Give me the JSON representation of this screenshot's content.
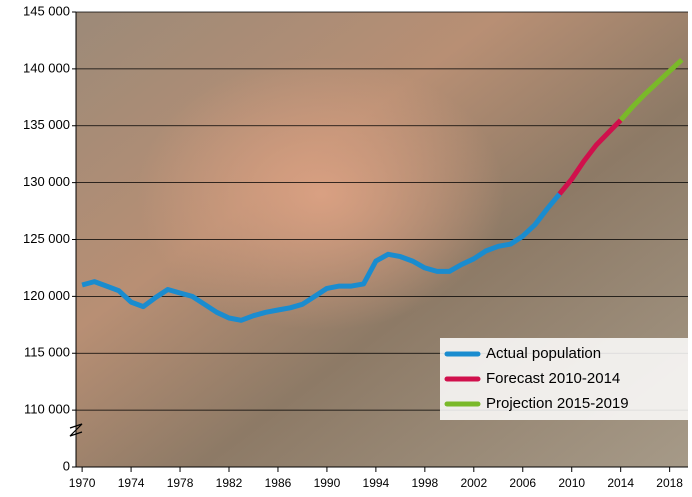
{
  "chart_data": {
    "type": "line",
    "xlim": [
      1969.5,
      2019.5
    ],
    "xticks": [
      1970,
      1974,
      1978,
      1982,
      1986,
      1990,
      1994,
      1998,
      2002,
      2006,
      2010,
      2014,
      2018
    ],
    "ylim": [
      105000,
      145000
    ],
    "axis_break": true,
    "yticks": [
      {
        "value": 0,
        "label": "0"
      },
      {
        "value": 110000,
        "label": "110 000"
      },
      {
        "value": 115000,
        "label": "115 000"
      },
      {
        "value": 120000,
        "label": "120 000"
      },
      {
        "value": 125000,
        "label": "125 000"
      },
      {
        "value": 130000,
        "label": "130 000"
      },
      {
        "value": 135000,
        "label": "135 000"
      },
      {
        "value": 140000,
        "label": "140 000"
      },
      {
        "value": 145000,
        "label": "145 000"
      }
    ],
    "grid": true,
    "legend": "lower right",
    "series": [
      {
        "name": "Actual population",
        "color": "#1a8ccf",
        "x": [
          1970,
          1971,
          1972,
          1973,
          1974,
          1975,
          1976,
          1977,
          1978,
          1979,
          1980,
          1981,
          1982,
          1983,
          1984,
          1985,
          1986,
          1987,
          1988,
          1989,
          1990,
          1991,
          1992,
          1993,
          1994,
          1995,
          1996,
          1997,
          1998,
          1999,
          2000,
          2001,
          2002,
          2003,
          2004,
          2005,
          2006,
          2007,
          2008,
          2009
        ],
        "values": [
          121000,
          121300,
          120900,
          120500,
          119500,
          119100,
          119900,
          120600,
          120300,
          120000,
          119300,
          118600,
          118100,
          117900,
          118300,
          118600,
          118800,
          119000,
          119300,
          120000,
          120700,
          120900,
          120900,
          121100,
          123100,
          123700,
          123500,
          123100,
          122500,
          122200,
          122200,
          122800,
          123300,
          124000,
          124400,
          124600,
          125300,
          126300,
          127700,
          129000
        ]
      },
      {
        "name": "Forecast 2010-2014",
        "color": "#d0104c",
        "x": [
          2009,
          2010,
          2011,
          2012,
          2013,
          2014
        ],
        "values": [
          129000,
          130300,
          131900,
          133300,
          134400,
          135500
        ]
      },
      {
        "name": "Projection 2015-2019",
        "color": "#7ab929",
        "x": [
          2014,
          2015,
          2016,
          2017,
          2018,
          2019
        ],
        "values": [
          135500,
          136700,
          137800,
          138800,
          139800,
          140800
        ]
      }
    ]
  }
}
